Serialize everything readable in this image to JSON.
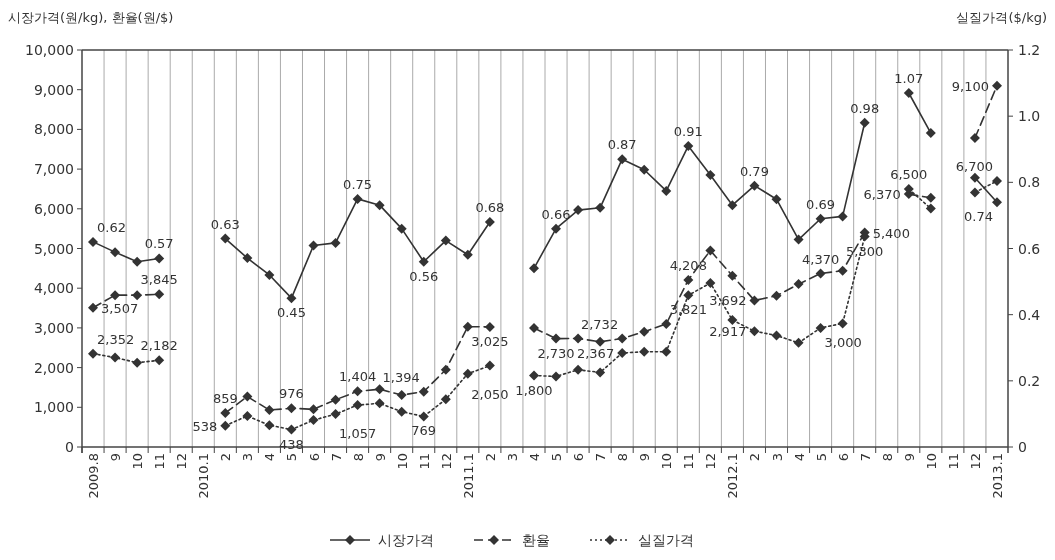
{
  "chart_data": {
    "type": "line",
    "ylabel": "시장가격(원/kg), 환율(원/$)",
    "y2label": "실질가격($/kg)",
    "categories": [
      "2009.8",
      "9",
      "10",
      "11",
      "12",
      "2010.1",
      "2",
      "3",
      "4",
      "5",
      "6",
      "7",
      "8",
      "9",
      "10",
      "11",
      "12",
      "2011.1",
      "2",
      "3",
      "4",
      "5",
      "6",
      "7",
      "8",
      "9",
      "10",
      "11",
      "12",
      "2012.1",
      "2",
      "3",
      "4",
      "5",
      "6",
      "7",
      "8",
      "9",
      "10",
      "11",
      "12",
      "2013.1"
    ],
    "ylim": [
      0,
      10000
    ],
    "yticks": [
      0,
      {
        "value": 1000,
        "label": "1,000"
      },
      {
        "value": 2000,
        "label": "2,000"
      },
      {
        "value": 3000,
        "label": "3,000"
      },
      {
        "value": 4000,
        "label": "4,000"
      },
      {
        "value": 5000,
        "label": "5,000"
      },
      {
        "value": 6000,
        "label": "6,000"
      },
      {
        "value": 7000,
        "label": "7,000"
      },
      {
        "value": 8000,
        "label": "8,000"
      },
      {
        "value": 9000,
        "label": "9,000"
      },
      {
        "value": 10000,
        "label": "10,000"
      }
    ],
    "y2lim": [
      0,
      1.2
    ],
    "y2ticks": [
      0,
      0.2,
      0.4,
      0.6,
      0.8,
      {
        "value": 1,
        "label": "1.0"
      },
      1.2
    ],
    "grid": "x",
    "legend": "bottom",
    "marker": "diamond",
    "series": [
      {
        "name": "시장가격",
        "color": "#333333",
        "axis": "y2",
        "line_style": "solid",
        "values": [
          0.62,
          0.589,
          0.56,
          0.57,
          null,
          null,
          0.63,
          0.571,
          0.52,
          0.45,
          0.609,
          0.617,
          0.75,
          0.731,
          0.66,
          0.56,
          0.624,
          0.581,
          0.68,
          null,
          0.54,
          0.66,
          0.716,
          0.723,
          0.87,
          0.838,
          0.774,
          0.91,
          0.822,
          0.731,
          0.79,
          0.749,
          0.627,
          0.69,
          0.697,
          0.98,
          null,
          1.07,
          0.949,
          null,
          0.814,
          0.74
        ],
        "value_labels": [
          "0.62",
          null,
          null,
          "0.57",
          null,
          null,
          "0.63",
          null,
          null,
          "0.45",
          null,
          null,
          "0.75",
          null,
          null,
          "0.56",
          null,
          null,
          "0.68",
          null,
          null,
          "0.66",
          null,
          null,
          "0.87",
          null,
          null,
          "0.91",
          null,
          null,
          "0.79",
          null,
          null,
          "0.69",
          null,
          "0.98",
          null,
          "1.07",
          null,
          null,
          null,
          "0.74"
        ]
      },
      {
        "name": "환율",
        "color": "#333333",
        "line_style": "dashed",
        "values": [
          3507,
          3825,
          3825,
          3845,
          null,
          null,
          859,
          1270,
          931,
          976,
          950,
          1190,
          1404,
          1456,
          1310,
          1394,
          1947,
          3030,
          3025,
          null,
          2997,
          2730,
          2734,
          2650,
          2732,
          2904,
          3100,
          4208,
          4949,
          4315,
          3692,
          3807,
          4103,
          4370,
          4442,
          5400,
          null,
          6370,
          6277,
          null,
          7783,
          9100
        ],
        "value_labels": [
          "3,507",
          null,
          null,
          "3,845",
          null,
          null,
          "859",
          null,
          null,
          "976",
          null,
          null,
          "1,404",
          null,
          null,
          "1,394",
          null,
          null,
          "3,025",
          null,
          null,
          "2,730",
          null,
          null,
          "2,732",
          null,
          null,
          "4,208",
          null,
          null,
          "3,692",
          null,
          null,
          "4,370",
          null,
          "5,400",
          null,
          "6,370",
          null,
          null,
          null,
          "9,100"
        ]
      },
      {
        "name": "실질가격",
        "color": "#333333",
        "line_style": "dotted",
        "values": [
          2352,
          2252,
          2125,
          2182,
          null,
          null,
          538,
          780,
          550,
          438,
          677,
          829,
          1057,
          1100,
          890,
          769,
          1203,
          1846,
          2050,
          null,
          1800,
          1778,
          1946,
          1878,
          2367,
          2400,
          2400,
          3821,
          4129,
          3198,
          2917,
          2809,
          2623,
          3000,
          3113,
          5300,
          null,
          6500,
          6007,
          null,
          6413,
          6700
        ],
        "value_labels": [
          "2,352",
          null,
          null,
          "2,182",
          null,
          null,
          "538",
          null,
          null,
          "438",
          null,
          null,
          "1,057",
          null,
          null,
          "769",
          null,
          null,
          "2,050",
          null,
          "1,800",
          null,
          null,
          null,
          "2,367",
          null,
          null,
          "3,821",
          null,
          null,
          "2,917",
          null,
          null,
          "3,000",
          null,
          "5,300",
          null,
          "6,500",
          null,
          null,
          null,
          "6,700"
        ]
      }
    ]
  }
}
